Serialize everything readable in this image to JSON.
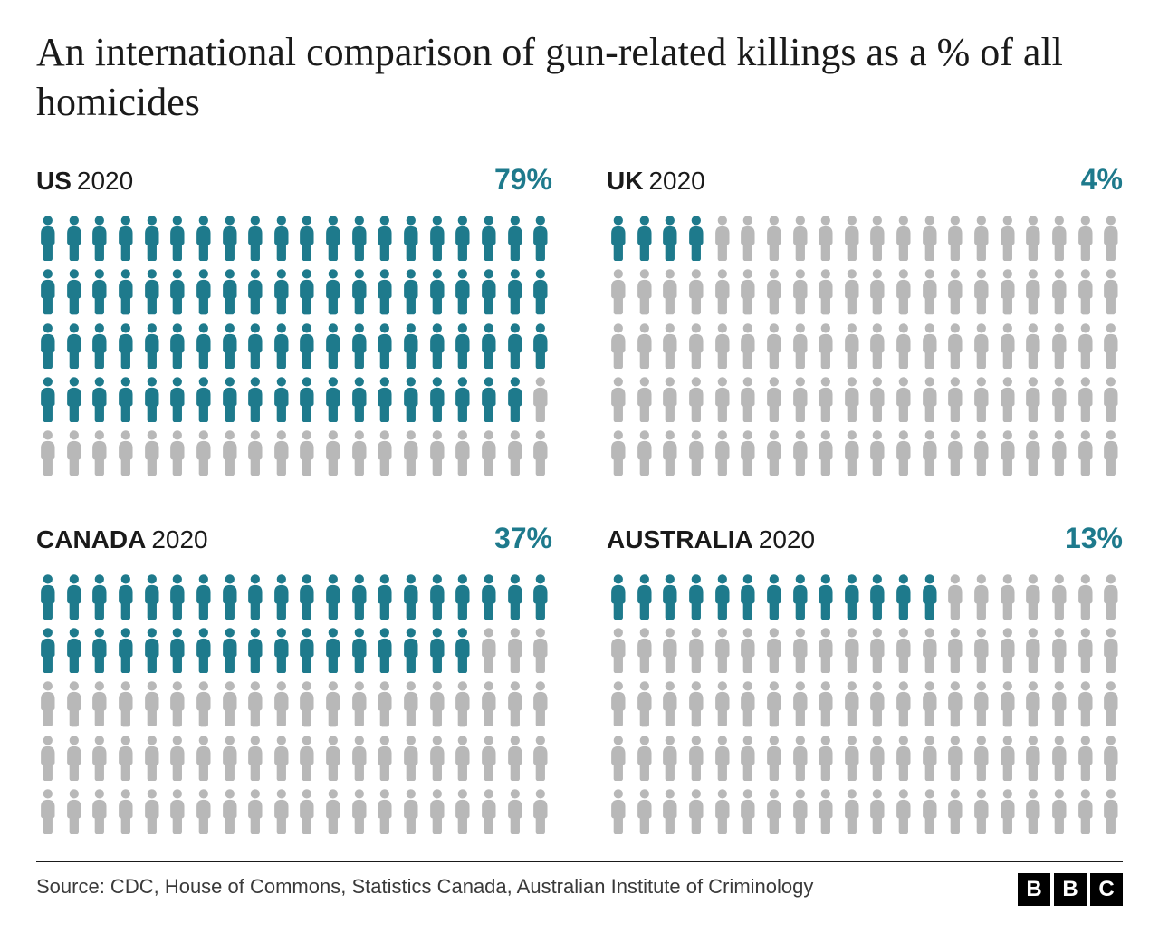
{
  "title": "An international comparison of gun-related killings as a % of all homicides",
  "title_fontsize": 44,
  "background_color": "#ffffff",
  "text_color": "#1a1a1a",
  "accent_color": "#1e7a8c",
  "inactive_color": "#b8b8b8",
  "pictogram": {
    "type": "pictogram",
    "total_icons": 100,
    "columns": 20,
    "rows": 5,
    "icon_shape": "person"
  },
  "panels": [
    {
      "country": "US",
      "year": "2020",
      "value": 79,
      "display": "79%"
    },
    {
      "country": "UK",
      "year": "2020",
      "value": 4,
      "display": "4%"
    },
    {
      "country": "CANADA",
      "year": "2020",
      "value": 37,
      "display": "37%"
    },
    {
      "country": "AUSTRALIA",
      "year": "2020",
      "value": 13,
      "display": "13%"
    }
  ],
  "source": "Source: CDC, House of Commons, Statistics Canada, Australian Institute of Criminology",
  "source_fontsize": 22,
  "logo": {
    "letters": [
      "B",
      "B",
      "C"
    ],
    "bg": "#000000",
    "fg": "#ffffff"
  }
}
